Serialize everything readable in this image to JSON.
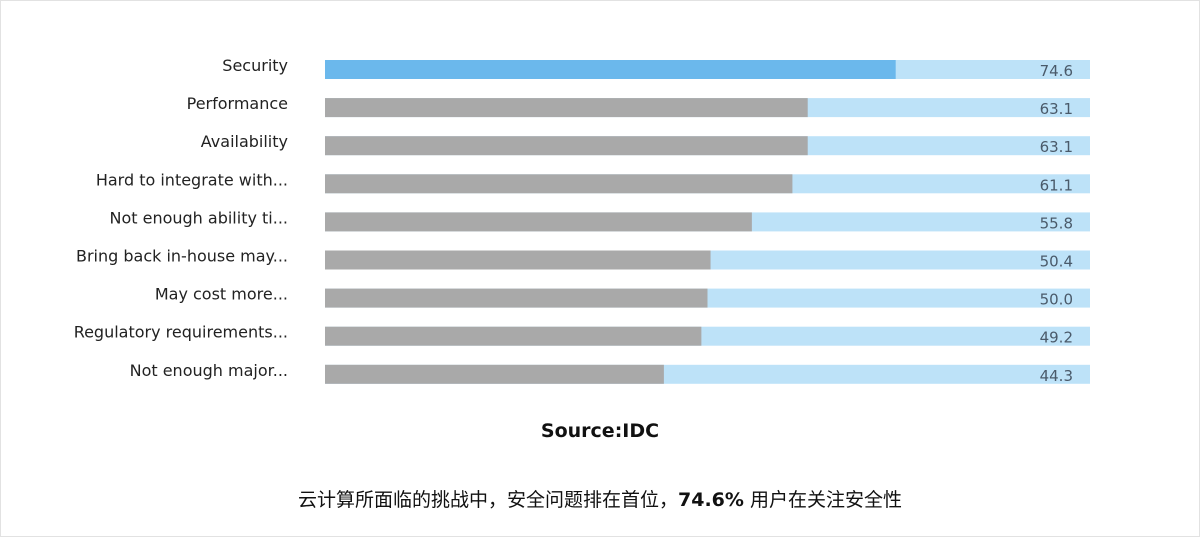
{
  "chart_data": {
    "type": "bar",
    "orientation": "horizontal",
    "categories": [
      "Security",
      "Performance",
      "Availability",
      "Hard to integrate with...",
      "Not enough ability ti...",
      "Bring back in-house may...",
      "May cost more...",
      "Regulatory requirements...",
      "Not enough major..."
    ],
    "values": [
      74.6,
      63.1,
      63.1,
      61.1,
      55.8,
      50.4,
      50.0,
      49.2,
      44.3
    ],
    "value_labels": [
      "74.6",
      "63.1",
      "63.1",
      "61.1",
      "55.8",
      "50.4",
      "50.0",
      "49.2",
      "44.3"
    ],
    "highlight_index": 0,
    "xlim": [
      0,
      100
    ],
    "grid": false,
    "legend": "none",
    "colors": {
      "highlight": "#6bb8ec",
      "bar": "#a9a9a9",
      "track": "#bde2f8"
    }
  },
  "source": "Source:IDC",
  "caption": {
    "prefix": "云计算所面临的挑战中，安全问题排在首位，",
    "highlight": "74.6%",
    "suffix": " 用户在关注安全性"
  }
}
